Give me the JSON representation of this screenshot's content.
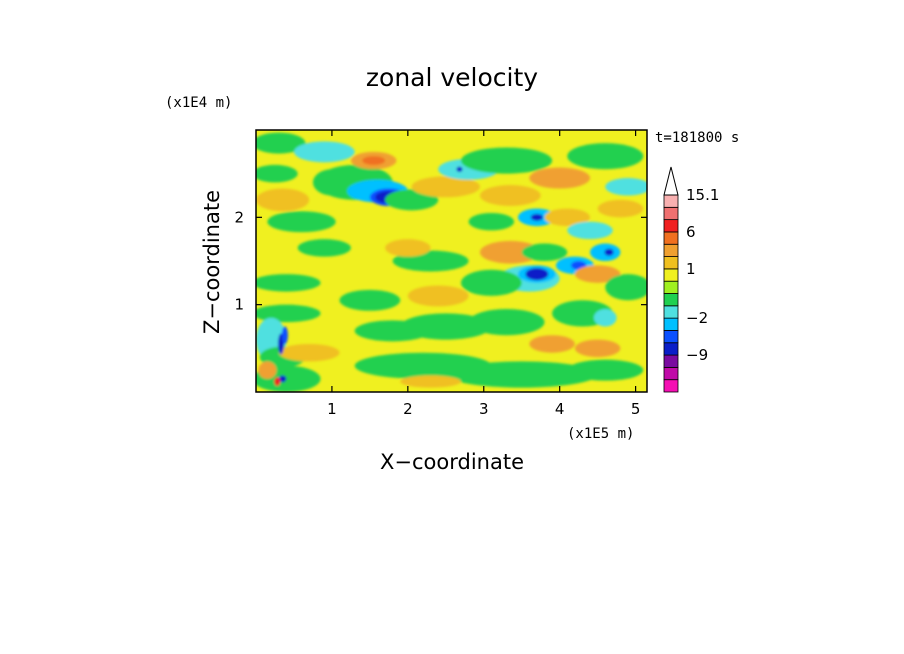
{
  "chart_data": {
    "type": "heatmap",
    "title": "zonal velocity",
    "xlabel": "X−coordinate",
    "ylabel": "Z−coordinate",
    "x_scale_label": "(x1E5 m)",
    "y_scale_label": "(x1E4 m)",
    "time_label": "t=181800 s",
    "xlim": [
      0,
      5.15
    ],
    "ylim": [
      0,
      3.0
    ],
    "x_ticks": [
      {
        "value": 1,
        "label": "1"
      },
      {
        "value": 2,
        "label": "2"
      },
      {
        "value": 3,
        "label": "3"
      },
      {
        "value": 4,
        "label": "4"
      },
      {
        "value": 5,
        "label": "5"
      }
    ],
    "y_ticks": [
      {
        "value": 1,
        "label": "1"
      },
      {
        "value": 2,
        "label": "2"
      }
    ],
    "colorbar": {
      "levels": [
        {
          "value": -15,
          "color": "#f50fb3"
        },
        {
          "value": -12,
          "color": "#c00aa8"
        },
        {
          "value": -9,
          "color": "#7a0aa0"
        },
        {
          "value": -6,
          "color": "#0a1ec8"
        },
        {
          "value": -3,
          "color": "#0a50ff"
        },
        {
          "value": -2,
          "color": "#00c0ff"
        },
        {
          "value": -1,
          "color": "#50e0e0"
        },
        {
          "value": 0,
          "color": "#20d050"
        },
        {
          "value": 0.5,
          "color": "#a0f020"
        },
        {
          "value": 1,
          "color": "#f0f020"
        },
        {
          "value": 2,
          "color": "#f0c020"
        },
        {
          "value": 3,
          "color": "#f0a030"
        },
        {
          "value": 6,
          "color": "#f07020"
        },
        {
          "value": 9,
          "color": "#f02020"
        },
        {
          "value": 12,
          "color": "#f07070"
        },
        {
          "value": 15.1,
          "color": "#f8b0b0"
        }
      ],
      "labels": [
        {
          "value": 15.1,
          "label": "15.1"
        },
        {
          "value": 6,
          "label": "6"
        },
        {
          "value": 1,
          "label": "1"
        },
        {
          "value": -2,
          "label": "−2"
        },
        {
          "value": -9,
          "label": "−9"
        }
      ]
    },
    "background_value": 1,
    "blobs": [
      {
        "x": 0.3,
        "y": 2.85,
        "rx": 0.35,
        "ry": 0.12,
        "value": 0
      },
      {
        "x": 0.9,
        "y": 2.75,
        "rx": 0.4,
        "ry": 0.12,
        "value": -1
      },
      {
        "x": 1.0,
        "y": 2.4,
        "rx": 0.25,
        "ry": 0.15,
        "value": 0
      },
      {
        "x": 0.25,
        "y": 2.5,
        "rx": 0.3,
        "ry": 0.1,
        "value": 0
      },
      {
        "x": 0.35,
        "y": 2.2,
        "rx": 0.35,
        "ry": 0.13,
        "value": 2
      },
      {
        "x": 0.6,
        "y": 1.95,
        "rx": 0.45,
        "ry": 0.12,
        "value": 0
      },
      {
        "x": 0.9,
        "y": 1.65,
        "rx": 0.35,
        "ry": 0.1,
        "value": 0
      },
      {
        "x": 0.4,
        "y": 1.25,
        "rx": 0.45,
        "ry": 0.1,
        "value": 0
      },
      {
        "x": 0.4,
        "y": 0.9,
        "rx": 0.45,
        "ry": 0.1,
        "value": 0
      },
      {
        "x": 0.2,
        "y": 0.6,
        "rx": 0.2,
        "ry": 0.25,
        "value": -1
      },
      {
        "x": 0.35,
        "y": 0.4,
        "rx": 0.3,
        "ry": 0.12,
        "value": 0
      },
      {
        "x": 0.7,
        "y": 0.45,
        "rx": 0.4,
        "ry": 0.1,
        "value": 2
      },
      {
        "x": 0.4,
        "y": 0.15,
        "rx": 0.45,
        "ry": 0.15,
        "value": 0
      },
      {
        "x": 0.15,
        "y": 0.25,
        "rx": 0.12,
        "ry": 0.1,
        "value": 3
      },
      {
        "x": 0.33,
        "y": 0.55,
        "rx": 0.04,
        "ry": 0.12,
        "value": -6
      },
      {
        "x": 0.38,
        "y": 0.65,
        "rx": 0.04,
        "ry": 0.1,
        "value": -3
      },
      {
        "x": 0.35,
        "y": 0.15,
        "rx": 0.05,
        "ry": 0.04,
        "value": -6
      },
      {
        "x": 0.28,
        "y": 0.12,
        "rx": 0.04,
        "ry": 0.05,
        "value": 9
      },
      {
        "x": 1.3,
        "y": 2.4,
        "rx": 0.5,
        "ry": 0.2,
        "value": 0
      },
      {
        "x": 1.6,
        "y": 2.3,
        "rx": 0.4,
        "ry": 0.13,
        "value": -2
      },
      {
        "x": 1.75,
        "y": 2.23,
        "rx": 0.25,
        "ry": 0.1,
        "value": -3
      },
      {
        "x": 1.75,
        "y": 2.23,
        "rx": 0.18,
        "ry": 0.07,
        "value": -6
      },
      {
        "x": 1.55,
        "y": 2.65,
        "rx": 0.3,
        "ry": 0.1,
        "value": 3
      },
      {
        "x": 1.55,
        "y": 2.65,
        "rx": 0.15,
        "ry": 0.05,
        "value": 6
      },
      {
        "x": 2.05,
        "y": 2.2,
        "rx": 0.35,
        "ry": 0.12,
        "value": 0
      },
      {
        "x": 2.5,
        "y": 2.35,
        "rx": 0.45,
        "ry": 0.12,
        "value": 2
      },
      {
        "x": 2.8,
        "y": 2.55,
        "rx": 0.4,
        "ry": 0.12,
        "value": -1
      },
      {
        "x": 2.68,
        "y": 2.55,
        "rx": 0.04,
        "ry": 0.03,
        "value": -6
      },
      {
        "x": 3.3,
        "y": 2.65,
        "rx": 0.6,
        "ry": 0.15,
        "value": 0
      },
      {
        "x": 4.0,
        "y": 2.45,
        "rx": 0.4,
        "ry": 0.12,
        "value": 3
      },
      {
        "x": 4.6,
        "y": 2.7,
        "rx": 0.5,
        "ry": 0.15,
        "value": 0
      },
      {
        "x": 4.9,
        "y": 2.35,
        "rx": 0.3,
        "ry": 0.1,
        "value": -1
      },
      {
        "x": 3.35,
        "y": 2.25,
        "rx": 0.4,
        "ry": 0.12,
        "value": 2
      },
      {
        "x": 3.7,
        "y": 2.0,
        "rx": 0.25,
        "ry": 0.1,
        "value": -2
      },
      {
        "x": 3.7,
        "y": 2.0,
        "rx": 0.08,
        "ry": 0.04,
        "value": -6
      },
      {
        "x": 4.1,
        "y": 2.0,
        "rx": 0.3,
        "ry": 0.1,
        "value": 2
      },
      {
        "x": 4.4,
        "y": 1.85,
        "rx": 0.3,
        "ry": 0.1,
        "value": -1
      },
      {
        "x": 4.6,
        "y": 1.6,
        "rx": 0.2,
        "ry": 0.1,
        "value": -2
      },
      {
        "x": 4.65,
        "y": 1.6,
        "rx": 0.06,
        "ry": 0.04,
        "value": -6
      },
      {
        "x": 4.8,
        "y": 2.1,
        "rx": 0.3,
        "ry": 0.1,
        "value": 2
      },
      {
        "x": 3.1,
        "y": 1.95,
        "rx": 0.3,
        "ry": 0.1,
        "value": 0
      },
      {
        "x": 3.35,
        "y": 1.6,
        "rx": 0.4,
        "ry": 0.13,
        "value": 3
      },
      {
        "x": 3.8,
        "y": 1.6,
        "rx": 0.3,
        "ry": 0.1,
        "value": 0
      },
      {
        "x": 4.2,
        "y": 1.45,
        "rx": 0.25,
        "ry": 0.1,
        "value": -2
      },
      {
        "x": 4.25,
        "y": 1.45,
        "rx": 0.1,
        "ry": 0.05,
        "value": -3
      },
      {
        "x": 4.5,
        "y": 1.35,
        "rx": 0.3,
        "ry": 0.1,
        "value": 3
      },
      {
        "x": 4.9,
        "y": 1.2,
        "rx": 0.3,
        "ry": 0.15,
        "value": 0
      },
      {
        "x": 3.6,
        "y": 1.3,
        "rx": 0.4,
        "ry": 0.15,
        "value": -1
      },
      {
        "x": 3.7,
        "y": 1.35,
        "rx": 0.25,
        "ry": 0.1,
        "value": -2
      },
      {
        "x": 3.7,
        "y": 1.35,
        "rx": 0.15,
        "ry": 0.07,
        "value": -6
      },
      {
        "x": 3.1,
        "y": 1.25,
        "rx": 0.4,
        "ry": 0.15,
        "value": 0
      },
      {
        "x": 2.3,
        "y": 1.5,
        "rx": 0.5,
        "ry": 0.12,
        "value": 0
      },
      {
        "x": 2.0,
        "y": 1.65,
        "rx": 0.3,
        "ry": 0.1,
        "value": 2
      },
      {
        "x": 2.4,
        "y": 1.1,
        "rx": 0.4,
        "ry": 0.12,
        "value": 2
      },
      {
        "x": 2.5,
        "y": 0.75,
        "rx": 0.6,
        "ry": 0.15,
        "value": 0
      },
      {
        "x": 3.3,
        "y": 0.8,
        "rx": 0.5,
        "ry": 0.15,
        "value": 0
      },
      {
        "x": 4.3,
        "y": 0.9,
        "rx": 0.4,
        "ry": 0.15,
        "value": 0
      },
      {
        "x": 4.5,
        "y": 0.5,
        "rx": 0.3,
        "ry": 0.1,
        "value": 3
      },
      {
        "x": 3.9,
        "y": 0.55,
        "rx": 0.3,
        "ry": 0.1,
        "value": 3
      },
      {
        "x": 4.6,
        "y": 0.85,
        "rx": 0.15,
        "ry": 0.1,
        "value": -1
      },
      {
        "x": 1.8,
        "y": 0.7,
        "rx": 0.5,
        "ry": 0.12,
        "value": 0
      },
      {
        "x": 1.5,
        "y": 1.05,
        "rx": 0.4,
        "ry": 0.12,
        "value": 0
      },
      {
        "x": 2.2,
        "y": 0.3,
        "rx": 0.9,
        "ry": 0.15,
        "value": 0
      },
      {
        "x": 3.5,
        "y": 0.2,
        "rx": 1.0,
        "ry": 0.15,
        "value": 0
      },
      {
        "x": 4.6,
        "y": 0.25,
        "rx": 0.5,
        "ry": 0.12,
        "value": 0
      },
      {
        "x": 2.3,
        "y": 0.12,
        "rx": 0.4,
        "ry": 0.07,
        "value": 2
      }
    ]
  }
}
